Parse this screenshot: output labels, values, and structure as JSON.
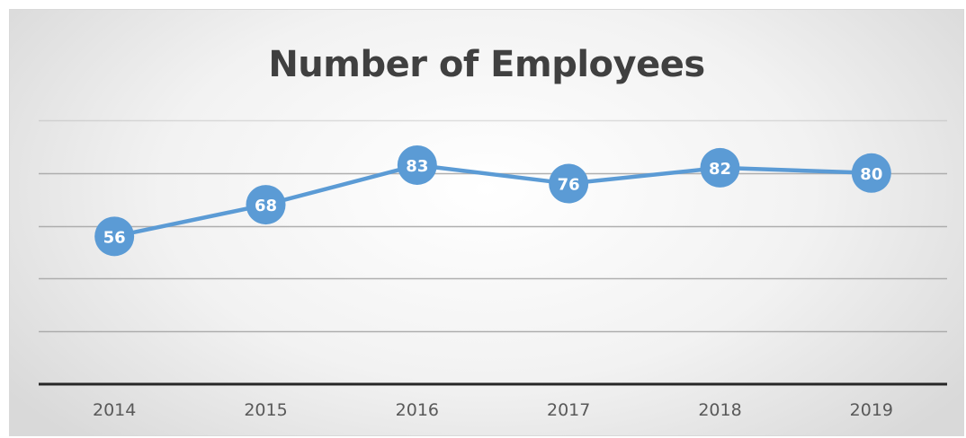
{
  "chart_data": {
    "type": "line",
    "title": "Number of Employees",
    "xlabel": "",
    "ylabel": "",
    "categories": [
      "2014",
      "2015",
      "2016",
      "2017",
      "2018",
      "2019"
    ],
    "series": [
      {
        "values": [
          56,
          68,
          83,
          76,
          82,
          80
        ]
      }
    ],
    "ylim": [
      0,
      100
    ],
    "y_gridline_step": 20,
    "show_data_labels": true,
    "show_y_tick_labels": false,
    "grid": true,
    "legend": "none",
    "colors": {
      "series": "#5b9bd5",
      "gridline": "#a6a6a6",
      "axis": "#262626",
      "title": "#404040",
      "tick_label": "#595959",
      "data_label": "#ffffff"
    }
  }
}
